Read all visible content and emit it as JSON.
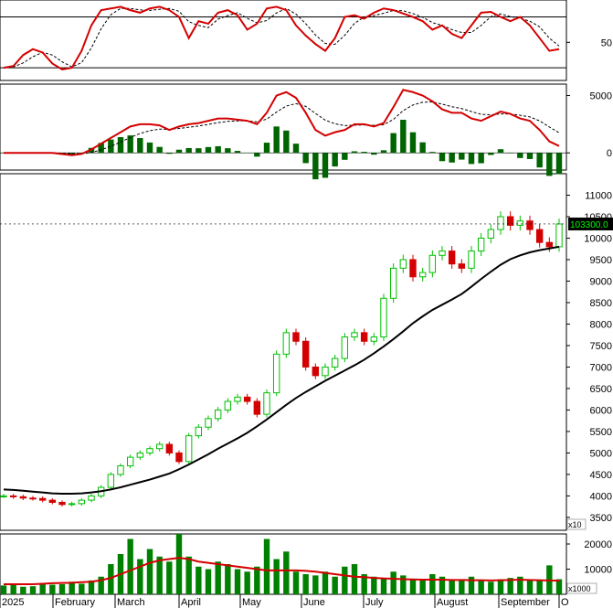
{
  "chart_data": [
    {
      "id": "stochastic",
      "type": "line",
      "yticks": [
        50
      ],
      "yrange": [
        5,
        100
      ],
      "levels": [
        80,
        20
      ],
      "series": [
        {
          "role": "k",
          "color": "#d40000",
          "style": "solid"
        },
        {
          "role": "d",
          "color": "#000000",
          "style": "dashed"
        }
      ],
      "k_values": [
        20,
        22,
        35,
        42,
        38,
        25,
        18,
        20,
        40,
        70,
        88,
        90,
        92,
        88,
        85,
        90,
        92,
        88,
        80,
        55,
        75,
        72,
        85,
        88,
        82,
        65,
        72,
        90,
        92,
        88,
        70,
        58,
        48,
        40,
        55,
        80,
        82,
        78,
        85,
        90,
        88,
        84,
        80,
        75,
        65,
        70,
        60,
        55,
        70,
        85,
        86,
        80,
        75,
        80,
        70,
        55,
        40,
        42
      ]
    },
    {
      "id": "macd",
      "type": "line",
      "yticks": [
        5000,
        0
      ],
      "yrange": [
        -1500,
        6000
      ],
      "series": [
        {
          "role": "macd",
          "color": "#d40000",
          "style": "solid"
        },
        {
          "role": "signal",
          "color": "#000000",
          "style": "dashed"
        },
        {
          "role": "histogram",
          "color": "#006400",
          "style": "bar"
        }
      ],
      "macd_values": [
        0,
        0,
        0,
        0,
        0,
        0,
        -100,
        -200,
        -100,
        300,
        800,
        1300,
        1800,
        2300,
        2500,
        2500,
        2400,
        2000,
        2300,
        2500,
        2600,
        2800,
        3000,
        3000,
        2900,
        2800,
        2500,
        3500,
        5000,
        5300,
        4800,
        3500,
        2000,
        1500,
        1800,
        2000,
        2500,
        2500,
        2300,
        2600,
        4000,
        5500,
        5300,
        5000,
        4500,
        3800,
        3500,
        3500,
        3000,
        2800,
        3200,
        3600,
        3400,
        3000,
        2800,
        2000,
        1000,
        600
      ]
    },
    {
      "id": "price",
      "type": "candlestick",
      "yticks": [
        11000,
        10500,
        10000,
        9500,
        9000,
        8500,
        8000,
        7500,
        7000,
        6500,
        6000,
        5500,
        5000,
        4500,
        4000,
        3500
      ],
      "yrange": [
        3200,
        11500
      ],
      "multiplier_label": "x10",
      "last_price": {
        "label": "103300.0",
        "value": 10330
      },
      "ma": {
        "color": "#000000",
        "values": [
          4150,
          4140,
          4120,
          4100,
          4080,
          4060,
          4050,
          4050,
          4060,
          4080,
          4110,
          4150,
          4200,
          4260,
          4320,
          4380,
          4450,
          4520,
          4620,
          4730,
          4850,
          4970,
          5100,
          5220,
          5340,
          5470,
          5620,
          5780,
          5950,
          6120,
          6280,
          6420,
          6550,
          6680,
          6800,
          6920,
          7040,
          7170,
          7320,
          7480,
          7650,
          7830,
          8020,
          8180,
          8330,
          8450,
          8570,
          8700,
          8870,
          9050,
          9220,
          9380,
          9510,
          9600,
          9670,
          9720,
          9760,
          9800
        ]
      },
      "close_values": [
        4000,
        3980,
        3950,
        3940,
        3900,
        3850,
        3800,
        3820,
        3900,
        4000,
        4200,
        4500,
        4700,
        4900,
        5000,
        5100,
        5200,
        5000,
        4800,
        5400,
        5600,
        5800,
        6000,
        6200,
        6300,
        6200,
        5900,
        6400,
        7300,
        7800,
        7600,
        7000,
        6800,
        7000,
        7200,
        7700,
        7800,
        7600,
        7700,
        8600,
        9300,
        9500,
        9100,
        9200,
        9600,
        9700,
        9400,
        9300,
        9700,
        10000,
        10200,
        10500,
        10300,
        10400,
        10200,
        9900,
        9800,
        10330
      ]
    },
    {
      "id": "volume",
      "type": "bar",
      "yticks": [
        20000,
        10000
      ],
      "yrange": [
        0,
        24000
      ],
      "multiplier_label": "x1000",
      "bar_color": "#008000",
      "ma": {
        "color": "#d40000",
        "values": [
          4000,
          4000,
          4000,
          4000,
          4200,
          4400,
          4500,
          4600,
          4800,
          5000,
          5600,
          6500,
          8000,
          9500,
          11000,
          12500,
          13500,
          14000,
          14500,
          14000,
          13000,
          12500,
          12000,
          11500,
          11000,
          10500,
          10000,
          9500,
          9500,
          9500,
          9500,
          9300,
          9000,
          8500,
          8000,
          7500,
          7000,
          6800,
          6500,
          6300,
          6200,
          6000,
          5900,
          5800,
          5800,
          5800,
          5700,
          5700,
          5600,
          5600,
          5500,
          5600,
          5700,
          5800,
          5700,
          5600,
          5500,
          5400
        ]
      },
      "values": [
        3500,
        4000,
        3000,
        3200,
        4500,
        3800,
        4000,
        5000,
        4200,
        5500,
        7000,
        12000,
        16000,
        22000,
        14000,
        18000,
        15000,
        13000,
        24000,
        15000,
        11000,
        10000,
        13000,
        12000,
        10000,
        9000,
        11000,
        22000,
        14000,
        17000,
        9000,
        8000,
        7500,
        9000,
        7000,
        11000,
        12000,
        8000,
        7000,
        6500,
        9000,
        7500,
        6000,
        6000,
        8000,
        7000,
        5500,
        6000,
        7000,
        5500,
        5000,
        6000,
        6500,
        7000,
        6000,
        5500,
        11500,
        6000
      ]
    }
  ],
  "x_axis": {
    "months": [
      "2025",
      "February",
      "March",
      "April",
      "May",
      "June",
      "July",
      "August",
      "September",
      "O"
    ]
  }
}
